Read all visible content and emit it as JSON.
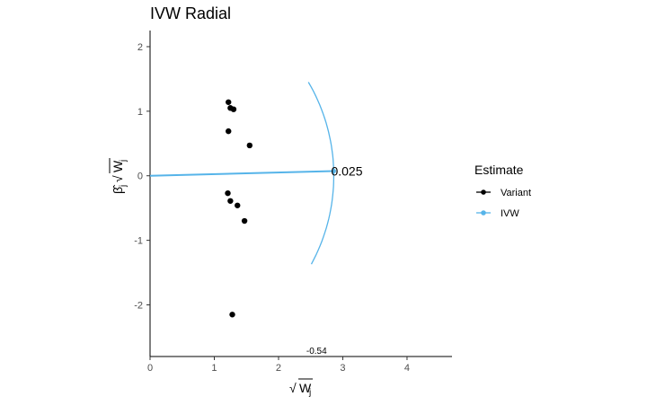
{
  "chart_data": {
    "type": "scatter",
    "title": "IVW Radial",
    "xlabel": "Wj",
    "ylabel": "βj Wj",
    "xlim": [
      0,
      4.7
    ],
    "ylim": [
      -2.8,
      2.25
    ],
    "xticks": [
      0,
      1,
      2,
      3,
      4
    ],
    "yticks": [
      -2,
      -1,
      0,
      1,
      2
    ],
    "grid": false,
    "legend_position": "right",
    "legend_title": "Estimate",
    "series": [
      {
        "name": "Variant",
        "color": "#000000",
        "points": [
          {
            "x": 1.22,
            "y": 1.14
          },
          {
            "x": 1.25,
            "y": 1.05
          },
          {
            "x": 1.3,
            "y": 1.03
          },
          {
            "x": 1.22,
            "y": 0.69
          },
          {
            "x": 1.55,
            "y": 0.47
          },
          {
            "x": 1.21,
            "y": -0.27
          },
          {
            "x": 1.25,
            "y": -0.39
          },
          {
            "x": 1.36,
            "y": -0.46
          },
          {
            "x": 1.47,
            "y": -0.7
          },
          {
            "x": 1.28,
            "y": -2.15
          }
        ]
      },
      {
        "name": "IVW",
        "color": "#56B4E9",
        "line": {
          "from": [
            0,
            0
          ],
          "to": [
            2.86,
            0.072
          ]
        },
        "arc_radius": 2.86,
        "arc_y_range": [
          -1.37,
          1.45
        ],
        "estimate": 0.025
      }
    ],
    "annotations": [
      {
        "text": "0.025",
        "x": 2.86,
        "y": 0.072,
        "size": "large"
      },
      {
        "text": "-0.54",
        "x": 2.6,
        "y": -2.7,
        "size": "small"
      }
    ]
  }
}
